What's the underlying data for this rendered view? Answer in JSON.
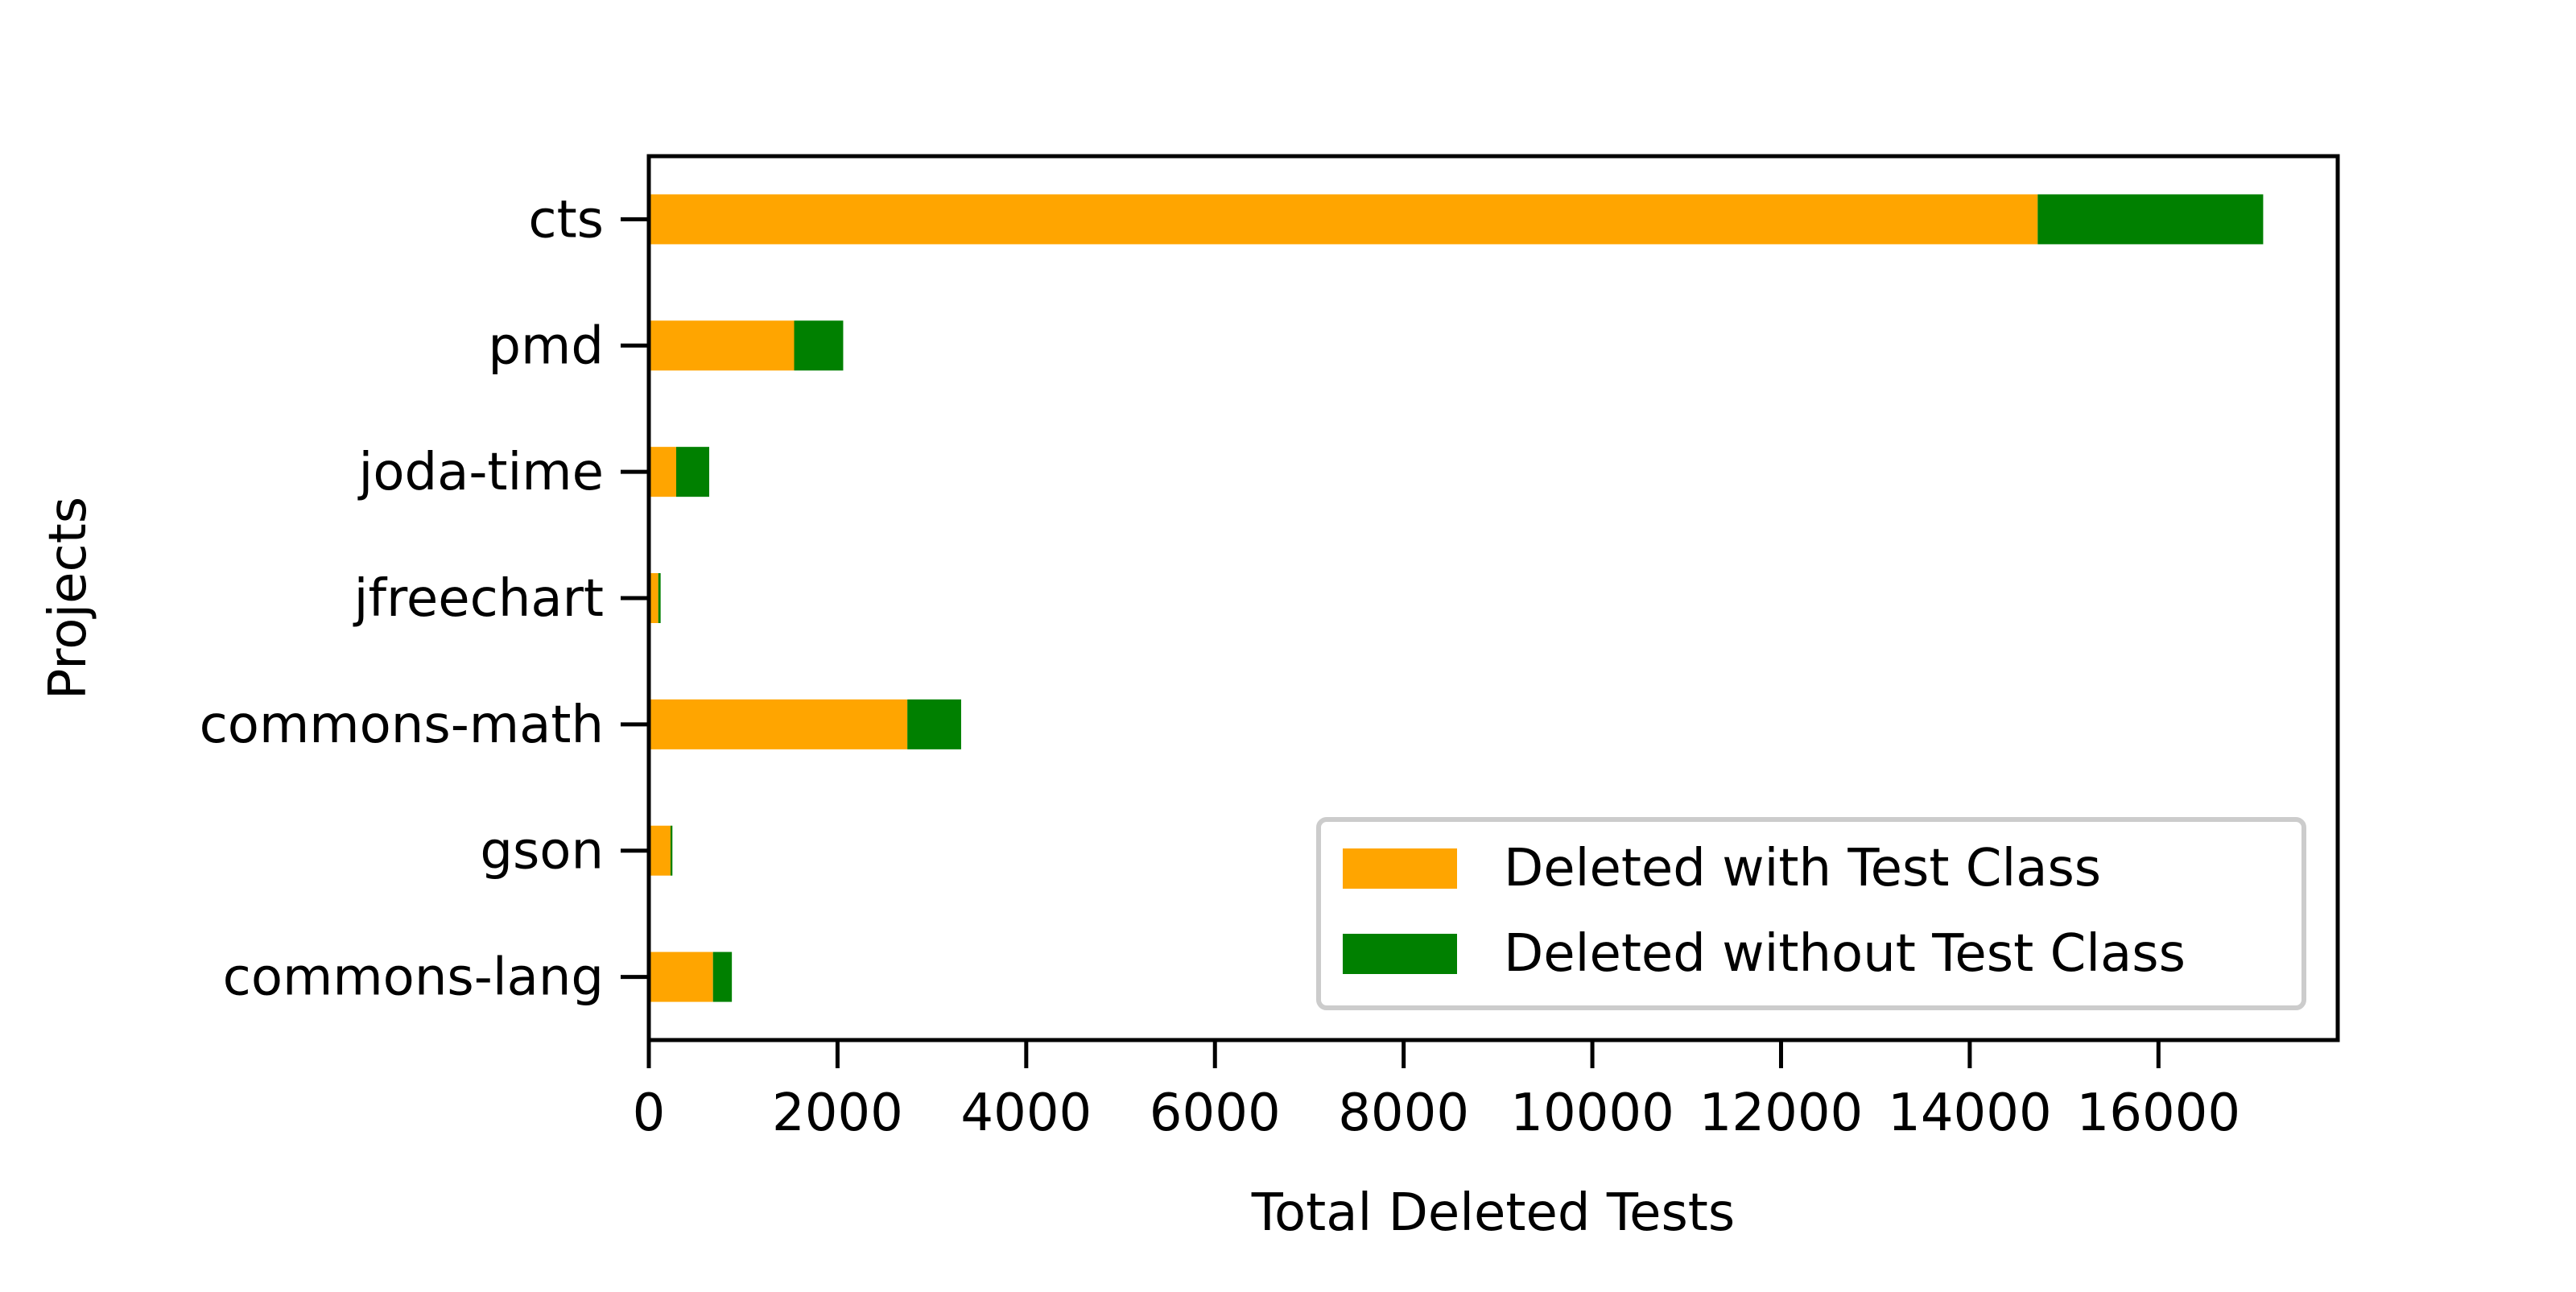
{
  "chart_data": {
    "type": "bar",
    "orientation": "horizontal",
    "stacked": true,
    "title": "",
    "xlabel": "Total Deleted Tests",
    "ylabel": "Projects",
    "categories": [
      "cts",
      "pmd",
      "joda-time",
      "jfreechart",
      "commons-math",
      "gson",
      "commons-lang"
    ],
    "series": [
      {
        "name": "Deleted with Test Class",
        "color": "#ffa500",
        "values": [
          14720,
          1540,
          290,
          100,
          2740,
          230,
          680
        ]
      },
      {
        "name": "Deleted without Test Class",
        "color": "#008000",
        "values": [
          2390,
          520,
          350,
          25,
          570,
          20,
          200
        ]
      }
    ],
    "xlim": [
      0,
      17900
    ],
    "xticks": [
      0,
      2000,
      4000,
      6000,
      8000,
      10000,
      12000,
      14000,
      16000
    ],
    "grid": false,
    "legend_position": "lower-right"
  }
}
